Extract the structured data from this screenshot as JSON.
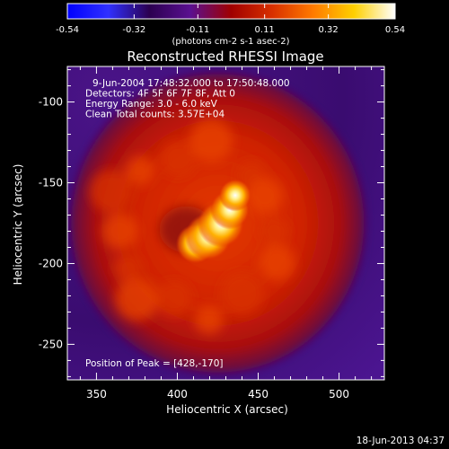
{
  "chart_data": {
    "type": "heatmap",
    "title": "Reconstructed RHESSI Image",
    "xlabel": "Heliocentric X (arcsec)",
    "ylabel": "Heliocentric Y (arcsec)",
    "xlim": [
      332,
      528
    ],
    "ylim": [
      -272,
      -78
    ],
    "x_ticks": [
      350,
      400,
      450,
      500
    ],
    "y_ticks": [
      -100,
      -150,
      -200,
      -250
    ],
    "colorbar": {
      "range": [
        -0.54,
        0.54
      ],
      "ticks": [
        "-0.54",
        "-0.32",
        "-0.11",
        "0.11",
        "0.32",
        "0.54"
      ],
      "unit": "(photons cm-2 s-1 asec-2)",
      "colors": [
        "#0000ff",
        "#3030ff",
        "#2b0050",
        "#5a1090",
        "#a00000",
        "#d83000",
        "#ff7a00",
        "#ffd000",
        "#ffffff"
      ]
    },
    "annotations": [
      "9-Jun-2004 17:48:32.000 to 17:50:48.000",
      "Detectors: 4F 5F 6F 7F 8F, Att 0",
      "Energy Range: 3.0 - 6.0 keV",
      "Clean     Total counts: 3.57E+04"
    ],
    "peak_label": "Position of Peak = [428,-170]",
    "peak": {
      "x": 428,
      "y": -170
    },
    "disk": {
      "center_x": 425,
      "center_y": -175,
      "radius_x": 88,
      "radius_y": 90
    },
    "ring": {
      "center_x": 410,
      "center_y": -180,
      "radius": 50
    },
    "grid": false
  },
  "footer": {
    "timestamp": "18-Jun-2013 04:37"
  }
}
